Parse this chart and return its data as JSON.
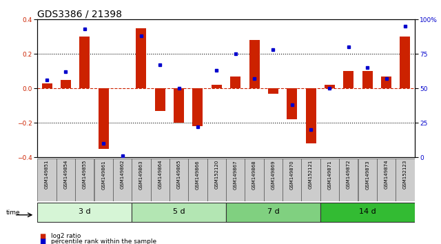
{
  "title": "GDS3386 / 21398",
  "samples": [
    "GSM149851",
    "GSM149854",
    "GSM149855",
    "GSM149861",
    "GSM149862",
    "GSM149863",
    "GSM149864",
    "GSM149865",
    "GSM149866",
    "GSM152120",
    "GSM149867",
    "GSM149868",
    "GSM149869",
    "GSM149870",
    "GSM152121",
    "GSM149871",
    "GSM149872",
    "GSM149873",
    "GSM149874",
    "GSM152123"
  ],
  "log2_ratio": [
    0.03,
    0.05,
    0.3,
    -0.35,
    0.0,
    0.35,
    -0.13,
    -0.2,
    -0.22,
    0.02,
    0.07,
    0.28,
    -0.03,
    -0.18,
    -0.32,
    0.02,
    0.1,
    0.1,
    0.07,
    0.3
  ],
  "percentile": [
    56,
    62,
    93,
    10,
    1,
    88,
    67,
    50,
    22,
    63,
    75,
    57,
    78,
    38,
    20,
    50,
    80,
    65,
    57,
    95
  ],
  "groups": [
    {
      "label": "3 d",
      "start": 0,
      "end": 5,
      "color": "#d6f5d6"
    },
    {
      "label": "5 d",
      "start": 5,
      "end": 10,
      "color": "#b3e6b3"
    },
    {
      "label": "7 d",
      "start": 10,
      "end": 15,
      "color": "#80d080"
    },
    {
      "label": "14 d",
      "start": 15,
      "end": 20,
      "color": "#33bb33"
    }
  ],
  "ylim_left": [
    -0.4,
    0.4
  ],
  "ylim_right": [
    0,
    100
  ],
  "bar_color": "#cc2200",
  "dot_color": "#0000cc",
  "title_fontsize": 10,
  "tick_fontsize": 6.5,
  "label_fontsize": 8,
  "sample_fontsize": 5.0
}
